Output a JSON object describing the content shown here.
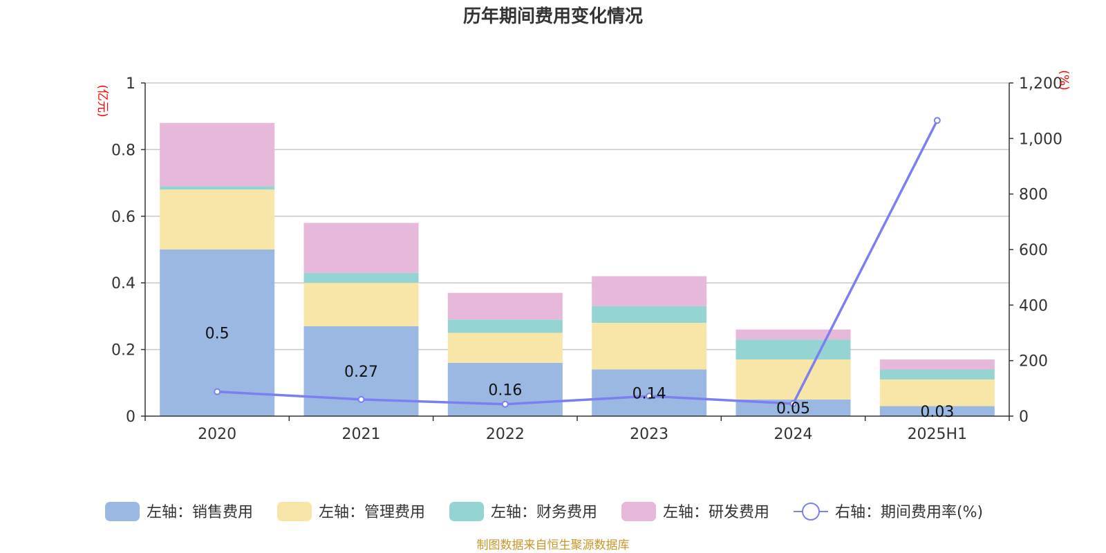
{
  "chart_data": {
    "type": "bar",
    "title": "历年期间费用变化情况",
    "categories": [
      "2020",
      "2021",
      "2022",
      "2023",
      "2024",
      "2025H1"
    ],
    "left_axis": {
      "unit": "(亿元)",
      "ylim": [
        0,
        1
      ],
      "ticks": [
        "0",
        "0.2",
        "0.4",
        "0.6",
        "0.8",
        "1"
      ]
    },
    "right_axis": {
      "unit": "(%)",
      "ylim": [
        0,
        1200
      ],
      "ticks": [
        "0",
        "200",
        "400",
        "600",
        "800",
        "1,000",
        "1,200"
      ]
    },
    "series": [
      {
        "name": "左轴：销售费用",
        "axis": "left",
        "stack": true,
        "color": "#9bb8e2",
        "values": [
          0.5,
          0.27,
          0.16,
          0.14,
          0.05,
          0.03
        ],
        "labels": [
          "0.5",
          "0.27",
          "0.16",
          "0.14",
          "0.05",
          "0.03"
        ]
      },
      {
        "name": "左轴：管理费用",
        "axis": "left",
        "stack": true,
        "color": "#f8e6a9",
        "values": [
          0.18,
          0.13,
          0.09,
          0.14,
          0.12,
          0.08
        ]
      },
      {
        "name": "左轴：财务费用",
        "axis": "left",
        "stack": true,
        "color": "#96d4d4",
        "values": [
          0.01,
          0.03,
          0.04,
          0.05,
          0.06,
          0.03
        ]
      },
      {
        "name": "左轴：研发费用",
        "axis": "left",
        "stack": true,
        "color": "#e6b8d9",
        "values": [
          0.19,
          0.15,
          0.08,
          0.09,
          0.03,
          0.03
        ]
      },
      {
        "name": "右轴：期间费用率(%)",
        "axis": "right",
        "type": "line",
        "color": "#7b7ff0",
        "values": [
          88,
          60,
          43,
          72,
          45,
          1065
        ]
      }
    ]
  },
  "source": "制图数据来自恒生聚源数据库"
}
